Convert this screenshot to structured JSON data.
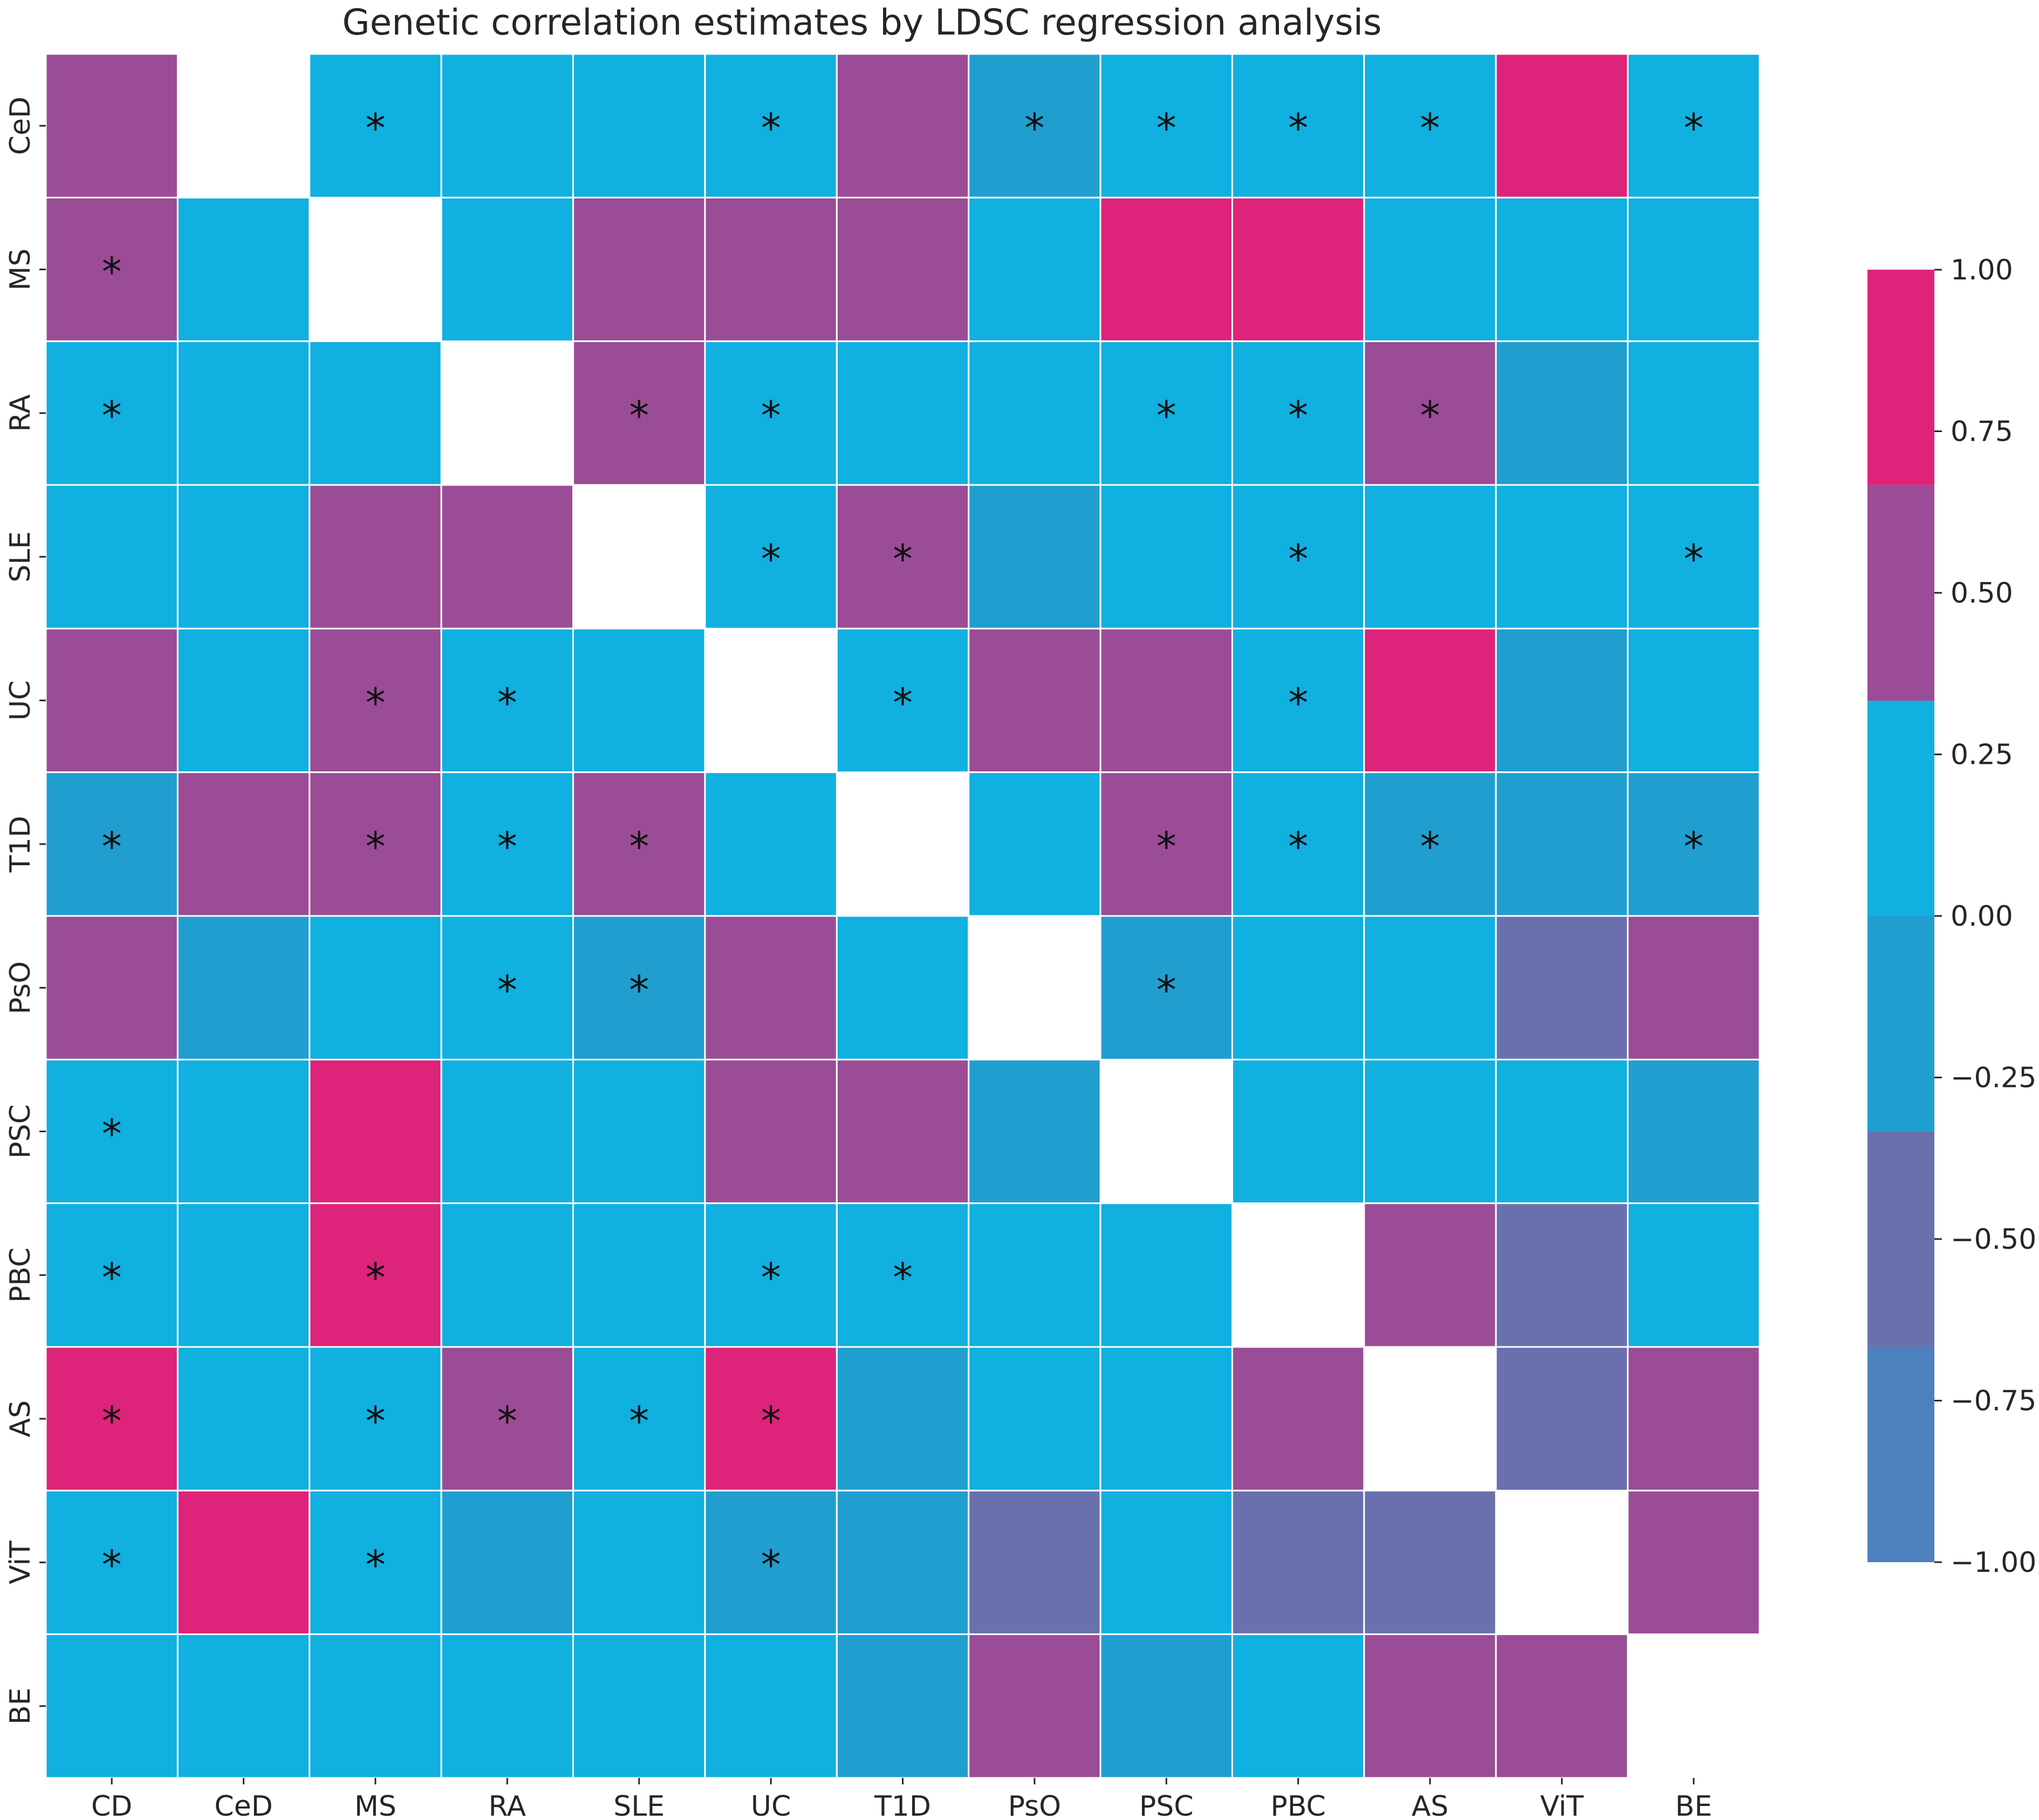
{
  "chart_data": {
    "type": "heatmap",
    "title": "Genetic correlation estimates by LDSC regression analysis",
    "xlabel": "",
    "ylabel": "",
    "x_categories": [
      "CD",
      "CeD",
      "MS",
      "RA",
      "SLE",
      "UC",
      "T1D",
      "PsO",
      "PSC",
      "PBC",
      "AS",
      "ViT",
      "BE"
    ],
    "y_categories": [
      "CeD",
      "MS",
      "RA",
      "SLE",
      "UC",
      "T1D",
      "PsO",
      "PSC",
      "PBC",
      "AS",
      "ViT",
      "BE"
    ],
    "values": [
      [
        0.6,
        null,
        0.1,
        0.1,
        0.1,
        0.1,
        0.6,
        -0.1,
        0.1,
        0.1,
        0.1,
        0.9,
        0.1
      ],
      [
        0.6,
        0.1,
        null,
        0.1,
        0.6,
        0.6,
        0.6,
        0.1,
        0.9,
        0.9,
        0.1,
        0.1,
        0.1
      ],
      [
        0.1,
        0.1,
        0.1,
        null,
        0.6,
        0.1,
        0.1,
        0.1,
        0.1,
        0.1,
        0.6,
        -0.1,
        0.1
      ],
      [
        0.1,
        0.1,
        0.6,
        0.6,
        null,
        0.1,
        0.6,
        -0.1,
        0.1,
        0.1,
        0.1,
        0.1,
        0.1
      ],
      [
        0.6,
        0.1,
        0.6,
        0.1,
        0.1,
        null,
        0.1,
        0.6,
        0.6,
        0.1,
        0.9,
        -0.1,
        0.1
      ],
      [
        -0.1,
        0.6,
        0.6,
        0.1,
        0.6,
        0.1,
        null,
        0.1,
        0.6,
        0.1,
        -0.1,
        -0.1,
        -0.1
      ],
      [
        0.6,
        -0.1,
        0.1,
        0.1,
        -0.1,
        0.6,
        0.1,
        null,
        -0.1,
        0.1,
        0.1,
        -0.4,
        0.6
      ],
      [
        0.1,
        0.1,
        0.9,
        0.1,
        0.1,
        0.6,
        0.6,
        -0.1,
        null,
        0.1,
        0.1,
        0.1,
        -0.1
      ],
      [
        0.1,
        0.1,
        0.9,
        0.1,
        0.1,
        0.1,
        0.1,
        0.1,
        0.1,
        null,
        0.6,
        -0.4,
        0.1
      ],
      [
        0.9,
        0.1,
        0.1,
        0.6,
        0.1,
        0.9,
        -0.1,
        0.1,
        0.1,
        0.6,
        null,
        -0.4,
        0.6
      ],
      [
        0.1,
        0.9,
        0.1,
        -0.1,
        0.1,
        -0.1,
        -0.1,
        -0.4,
        0.1,
        -0.4,
        -0.4,
        null,
        0.6
      ],
      [
        0.1,
        0.1,
        0.1,
        0.1,
        0.1,
        0.1,
        -0.1,
        0.6,
        -0.1,
        0.1,
        0.6,
        0.6,
        null
      ]
    ],
    "significant_marker": "*",
    "significant": [
      [
        0,
        2
      ],
      [
        0,
        5
      ],
      [
        0,
        7
      ],
      [
        0,
        8
      ],
      [
        0,
        9
      ],
      [
        0,
        10
      ],
      [
        0,
        12
      ],
      [
        1,
        0
      ],
      [
        2,
        0
      ],
      [
        2,
        4
      ],
      [
        2,
        5
      ],
      [
        2,
        8
      ],
      [
        2,
        9
      ],
      [
        2,
        10
      ],
      [
        3,
        5
      ],
      [
        3,
        6
      ],
      [
        3,
        9
      ],
      [
        3,
        12
      ],
      [
        4,
        2
      ],
      [
        4,
        3
      ],
      [
        4,
        6
      ],
      [
        4,
        9
      ],
      [
        5,
        0
      ],
      [
        5,
        2
      ],
      [
        5,
        3
      ],
      [
        5,
        4
      ],
      [
        5,
        8
      ],
      [
        5,
        9
      ],
      [
        5,
        10
      ],
      [
        5,
        12
      ],
      [
        6,
        3
      ],
      [
        6,
        4
      ],
      [
        6,
        8
      ],
      [
        7,
        0
      ],
      [
        8,
        0
      ],
      [
        8,
        2
      ],
      [
        8,
        5
      ],
      [
        8,
        6
      ],
      [
        9,
        0
      ],
      [
        9,
        2
      ],
      [
        9,
        3
      ],
      [
        9,
        4
      ],
      [
        9,
        5
      ],
      [
        10,
        0
      ],
      [
        10,
        2
      ],
      [
        10,
        5
      ]
    ],
    "colorbar": {
      "range": [
        -1.0,
        1.0
      ],
      "ticks": [
        "1.00",
        "0.75",
        "0.50",
        "0.25",
        "0.00",
        "−0.25",
        "−0.50",
        "−0.75",
        "−1.00"
      ],
      "bins": [
        {
          "from": -1.0,
          "to": -0.667,
          "color": "#4c80be"
        },
        {
          "from": -0.667,
          "to": -0.333,
          "color": "#6a70ae"
        },
        {
          "from": -0.333,
          "to": 0.0,
          "color": "#209ed0"
        },
        {
          "from": 0.0,
          "to": 0.333,
          "color": "#10b0e0"
        },
        {
          "from": 0.333,
          "to": 0.667,
          "color": "#9b4c96"
        },
        {
          "from": 0.667,
          "to": 1.0,
          "color": "#de237a"
        }
      ]
    },
    "grid": false,
    "legend": "colorbar-right"
  }
}
